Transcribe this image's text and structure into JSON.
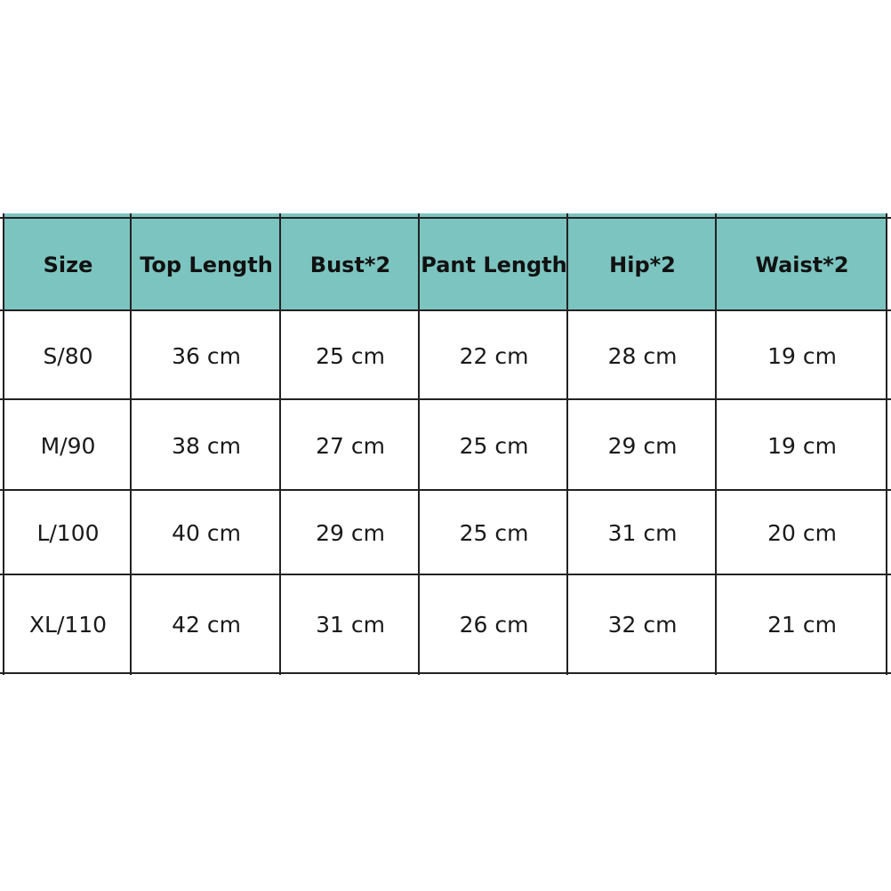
{
  "header_color": "#7cc4c0",
  "table": {
    "headers": [
      "Size",
      "Top Length",
      "Bust*2",
      "Pant Length",
      "Hip*2",
      "Waist*2"
    ],
    "rows": [
      [
        "S/80",
        "36 cm",
        "25 cm",
        "22 cm",
        "28 cm",
        "19 cm"
      ],
      [
        "M/90",
        "38 cm",
        "27 cm",
        "25 cm",
        "29 cm",
        "19 cm"
      ],
      [
        "L/100",
        "40 cm",
        "29 cm",
        "25 cm",
        "31 cm",
        "20 cm"
      ],
      [
        "XL/110",
        "42 cm",
        "31 cm",
        "26 cm",
        "32 cm",
        "21 cm"
      ]
    ]
  }
}
